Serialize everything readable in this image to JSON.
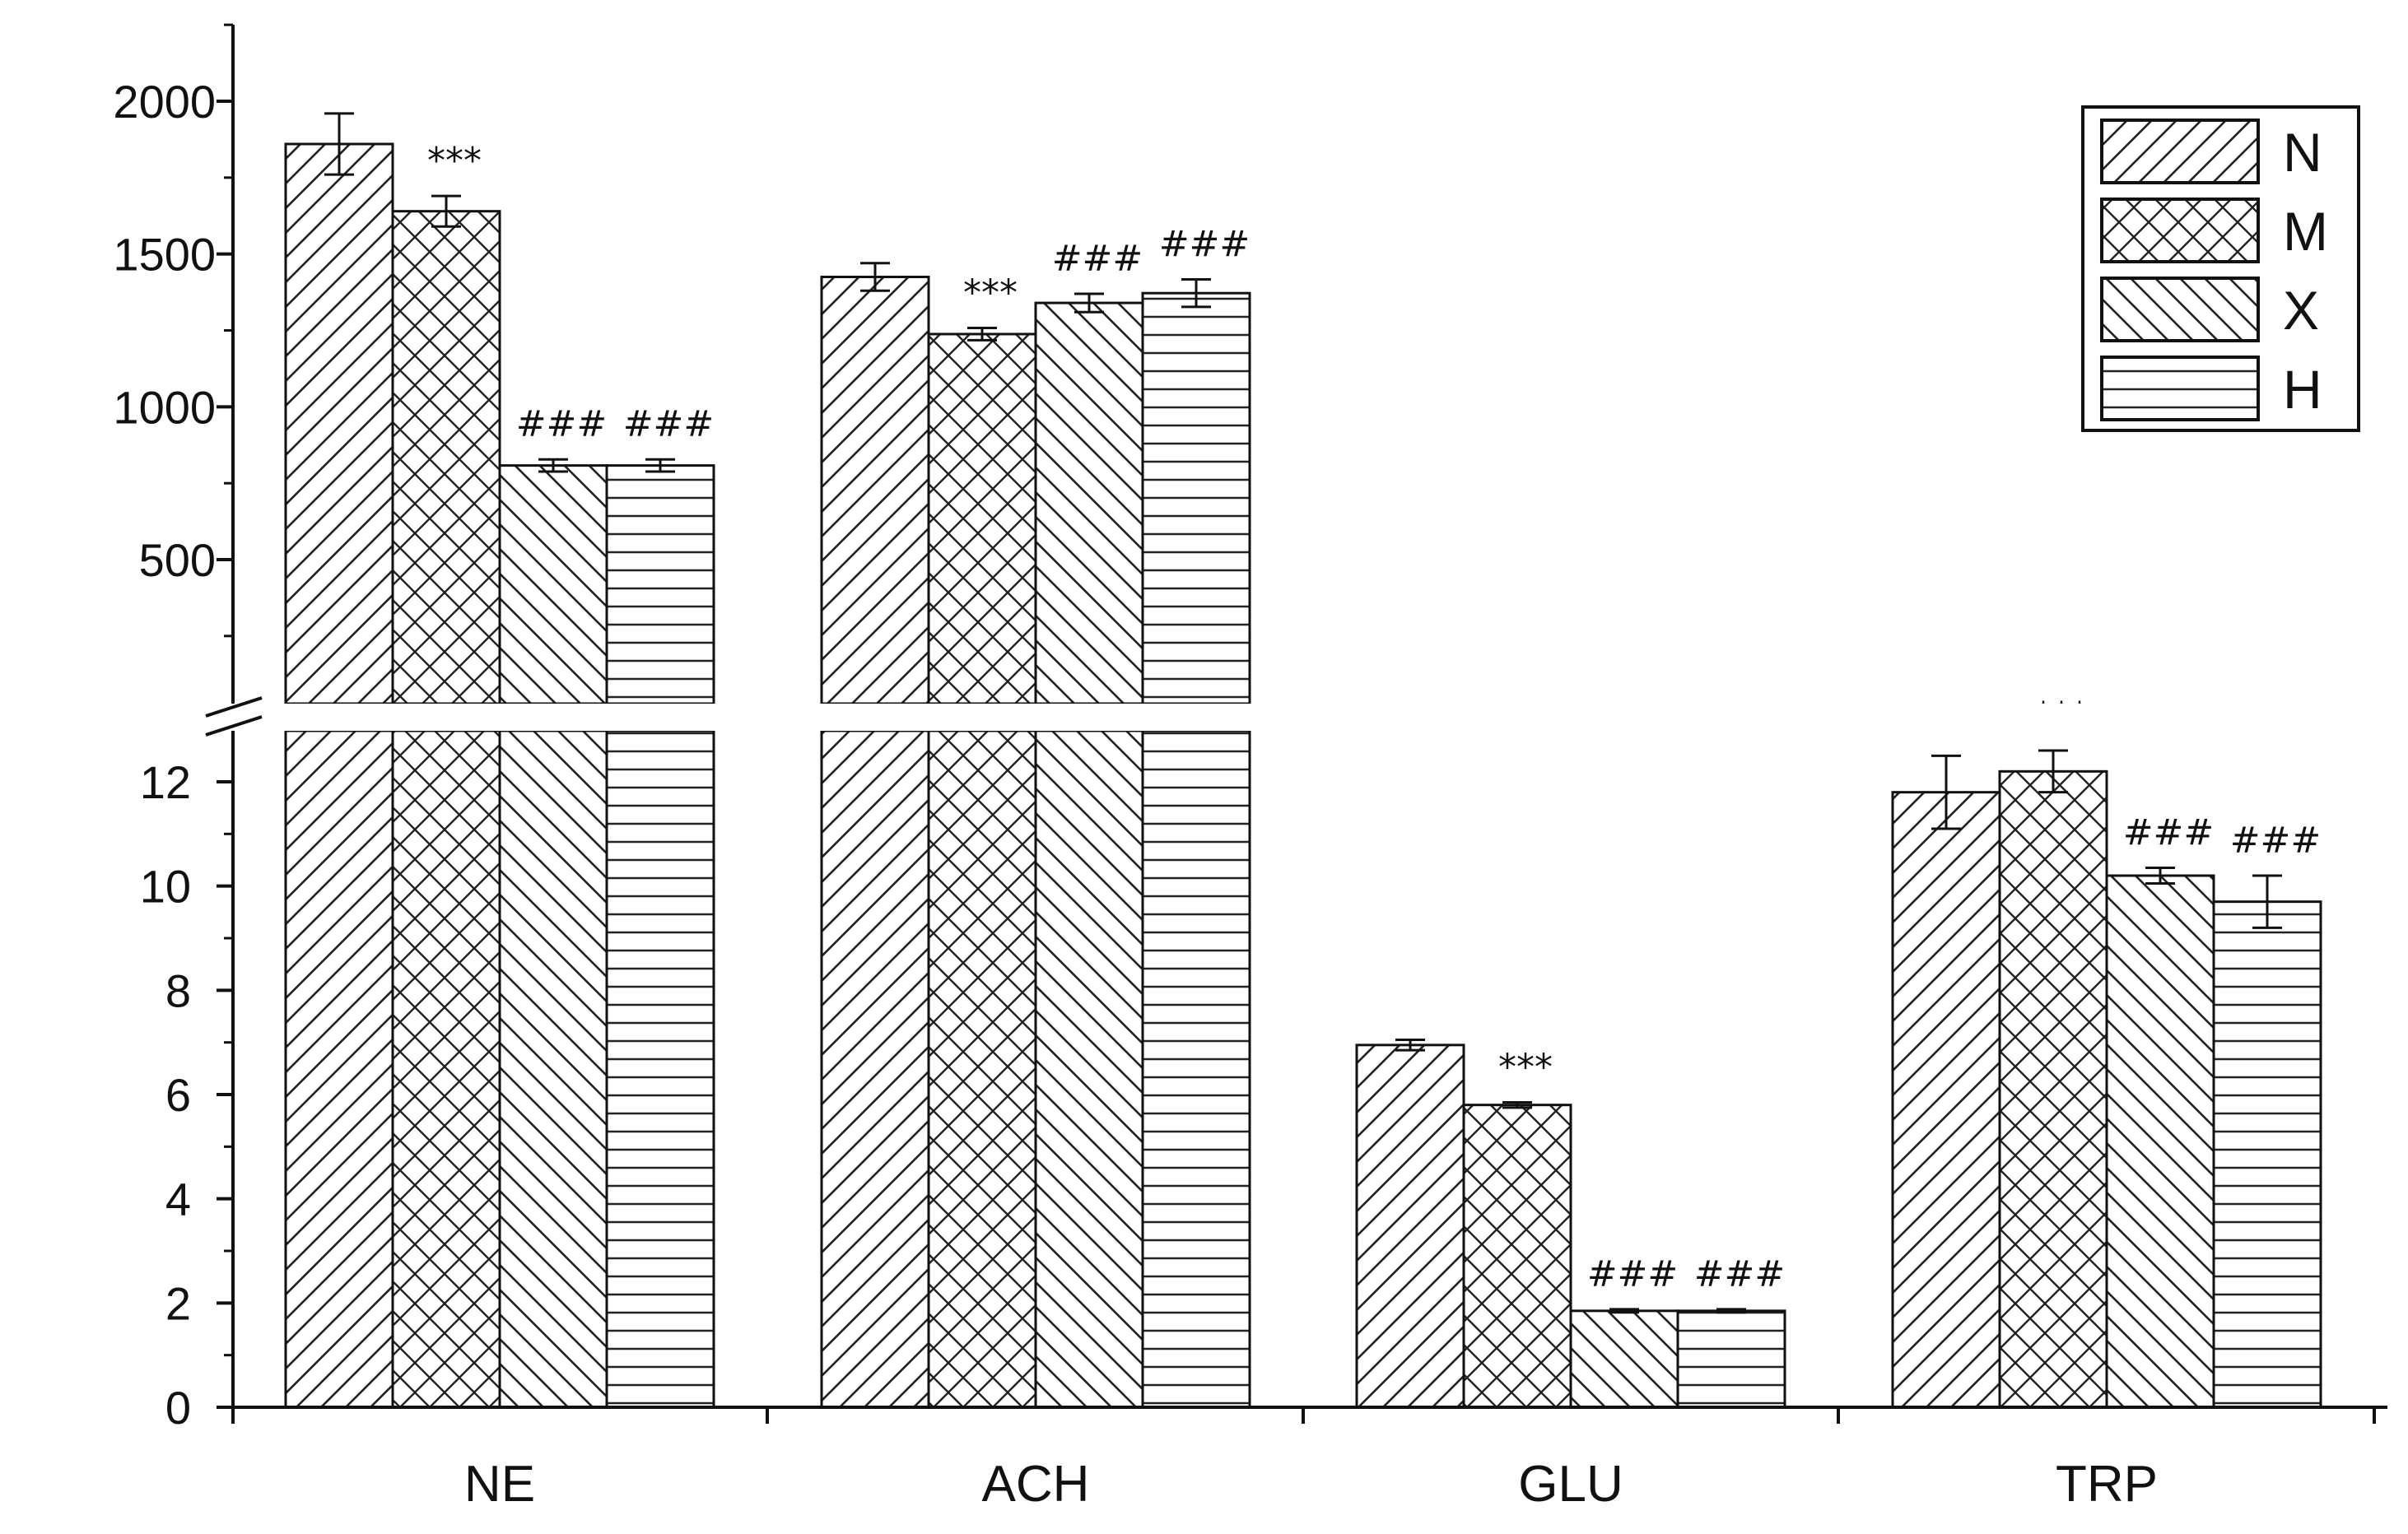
{
  "chart_data": {
    "type": "bar",
    "title": "",
    "xlabel": "",
    "ylabel": "",
    "categories": [
      "NE",
      "ACH",
      "GLU",
      "TRP"
    ],
    "series": [
      {
        "name": "N",
        "pattern": "diagonal-up",
        "values": [
          1860,
          1425,
          6.95,
          11.8
        ],
        "errors": [
          100,
          45,
          0.1,
          0.7
        ]
      },
      {
        "name": "M",
        "pattern": "crosshatch",
        "values": [
          1640,
          1238,
          5.8,
          12.2
        ],
        "errors": [
          50,
          20,
          0.05,
          0.4
        ]
      },
      {
        "name": "X",
        "pattern": "diagonal-down",
        "values": [
          808,
          1340,
          1.85,
          10.2
        ],
        "errors": [
          20,
          30,
          0.03,
          0.15
        ]
      },
      {
        "name": "H",
        "pattern": "horizontal",
        "values": [
          808,
          1372,
          1.85,
          9.7
        ],
        "errors": [
          20,
          45,
          0.03,
          0.5
        ]
      }
    ],
    "annotations": [
      [
        "",
        "***",
        "###",
        "###"
      ],
      [
        "",
        "***",
        "###",
        "###"
      ],
      [
        "",
        "***",
        "###",
        "###"
      ],
      [
        "",
        "***",
        "###",
        "###"
      ]
    ],
    "y_axis_broken": true,
    "lower_segment": {
      "ylim": [
        0,
        13
      ],
      "ticks": [
        0,
        2,
        4,
        6,
        8,
        10,
        12
      ]
    },
    "upper_segment": {
      "ylim": [
        0,
        2250
      ],
      "ticks": [
        500,
        1000,
        1500,
        2000
      ]
    },
    "legend": {
      "position": "top-right",
      "entries": [
        "N",
        "M",
        "X",
        "H"
      ]
    },
    "grid": false,
    "colors": {
      "bar_fill": "#ffffff",
      "ink": "#111111"
    }
  }
}
